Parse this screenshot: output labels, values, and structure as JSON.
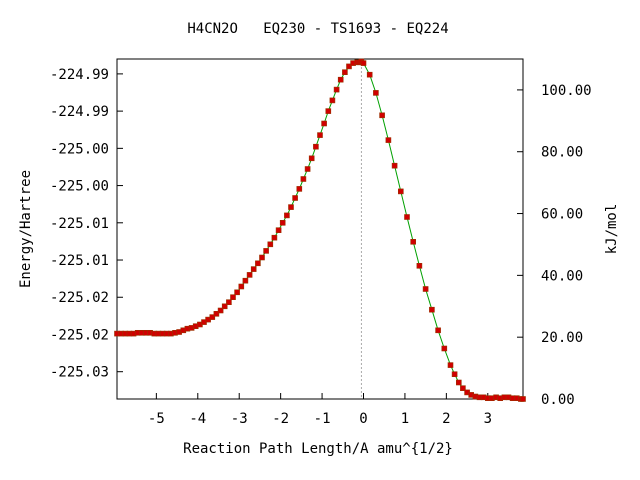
{
  "chart_data": {
    "type": "line",
    "title": "H4CN2O   EQ230 - TS1693 - EQ224",
    "xlabel": "Reaction Path Length/A amu^{1/2}",
    "ylabel": "Energy/Hartree",
    "y2label": "kJ/mol",
    "xlim": [
      -5.95,
      3.85
    ],
    "ylim": [
      -225.0336,
      -224.9925
    ],
    "y2lim": [
      0,
      110
    ],
    "x_ticks": [
      {
        "v": -5,
        "label": "-5"
      },
      {
        "v": -4,
        "label": "-4"
      },
      {
        "v": -3,
        "label": "-3"
      },
      {
        "v": -2,
        "label": "-2"
      },
      {
        "v": -1,
        "label": "-1"
      },
      {
        "v": 0,
        "label": "0"
      },
      {
        "v": 1,
        "label": "1"
      },
      {
        "v": 2,
        "label": "2"
      },
      {
        "v": 3,
        "label": "3"
      }
    ],
    "y_ticks": [
      {
        "v": -224.9943,
        "label": "-224.99"
      },
      {
        "v": -224.9988,
        "label": "-224.99"
      },
      {
        "v": -225.0033,
        "label": "-225.00"
      },
      {
        "v": -225.0078,
        "label": "-225.00"
      },
      {
        "v": -225.0123,
        "label": "-225.01"
      },
      {
        "v": -225.0168,
        "label": "-225.01"
      },
      {
        "v": -225.0213,
        "label": "-225.02"
      },
      {
        "v": -225.0258,
        "label": "-225.02"
      },
      {
        "v": -225.0303,
        "label": "-225.03"
      }
    ],
    "y2_ticks": [
      {
        "v": 0,
        "label": "0.00"
      },
      {
        "v": 20,
        "label": "20.00"
      },
      {
        "v": 40,
        "label": "40.00"
      },
      {
        "v": 60,
        "label": "60.00"
      },
      {
        "v": 80,
        "label": "80.00"
      },
      {
        "v": 100,
        "label": "100.00"
      }
    ],
    "ts_marker_x": -0.05,
    "line_color": "#00a000",
    "marker_color": "#d00000",
    "marker_stroke": "#993300",
    "ts_line_color": "#aaaaaa",
    "series": [
      {
        "x": [
          -5.95,
          -5.85,
          -5.75,
          -5.65,
          -5.55,
          -5.45,
          -5.35,
          -5.25,
          -5.15,
          -5.05,
          -4.95,
          -4.85,
          -4.75,
          -4.65,
          -4.55,
          -4.45,
          -4.35,
          -4.25,
          -4.15,
          -4.05,
          -3.95,
          -3.85,
          -3.75,
          -3.65,
          -3.55,
          -3.45,
          -3.35,
          -3.25,
          -3.15,
          -3.05,
          -2.95,
          -2.85,
          -2.75,
          -2.65,
          -2.55,
          -2.45,
          -2.35,
          -2.25,
          -2.15,
          -2.05,
          -1.95,
          -1.85,
          -1.75,
          -1.65,
          -1.55,
          -1.45,
          -1.35,
          -1.25,
          -1.15,
          -1.05,
          -0.95,
          -0.85,
          -0.75,
          -0.65,
          -0.55,
          -0.45,
          -0.35,
          -0.25,
          -0.15,
          -0.1,
          -0.05,
          0.0,
          0.15,
          0.3,
          0.45,
          0.6,
          0.75,
          0.9,
          1.05,
          1.2,
          1.35,
          1.5,
          1.65,
          1.8,
          1.95,
          2.1,
          2.2,
          2.3,
          2.4,
          2.5,
          2.6,
          2.7,
          2.8,
          2.9,
          3.0,
          3.1,
          3.2,
          3.3,
          3.4,
          3.5,
          3.6,
          3.7,
          3.8,
          3.85
        ],
        "y": [
          -225.0257,
          -225.0257,
          -225.0257,
          -225.0257,
          -225.0257,
          -225.0256,
          -225.0256,
          -225.0256,
          -225.0256,
          -225.0257,
          -225.0257,
          -225.0257,
          -225.0257,
          -225.0257,
          -225.0256,
          -225.0255,
          -225.0253,
          -225.0251,
          -225.025,
          -225.0248,
          -225.0246,
          -225.0243,
          -225.024,
          -225.0237,
          -225.0233,
          -225.0229,
          -225.0224,
          -225.0219,
          -225.0213,
          -225.0207,
          -225.02,
          -225.0193,
          -225.0186,
          -225.0179,
          -225.0172,
          -225.0165,
          -225.0157,
          -225.0149,
          -225.0141,
          -225.0132,
          -225.0123,
          -225.0114,
          -225.0104,
          -225.0093,
          -225.0082,
          -225.007,
          -225.0058,
          -225.0045,
          -225.0031,
          -225.0017,
          -225.0003,
          -224.9988,
          -224.9975,
          -224.9962,
          -224.995,
          -224.9941,
          -224.9934,
          -224.993,
          -224.9929,
          -224.9929,
          -224.9928,
          -224.993,
          -224.9944,
          -224.9966,
          -224.9993,
          -225.0023,
          -225.0054,
          -225.0085,
          -225.0116,
          -225.0146,
          -225.0175,
          -225.0203,
          -225.0228,
          -225.0253,
          -225.0275,
          -225.0295,
          -225.0306,
          -225.0316,
          -225.0323,
          -225.0328,
          -225.0331,
          -225.0333,
          -225.0334,
          -225.0334,
          -225.0335,
          -225.0335,
          -225.0334,
          -225.0335,
          -225.0334,
          -225.0334,
          -225.0335,
          -225.0335,
          -225.0336,
          -225.0336
        ]
      }
    ]
  }
}
